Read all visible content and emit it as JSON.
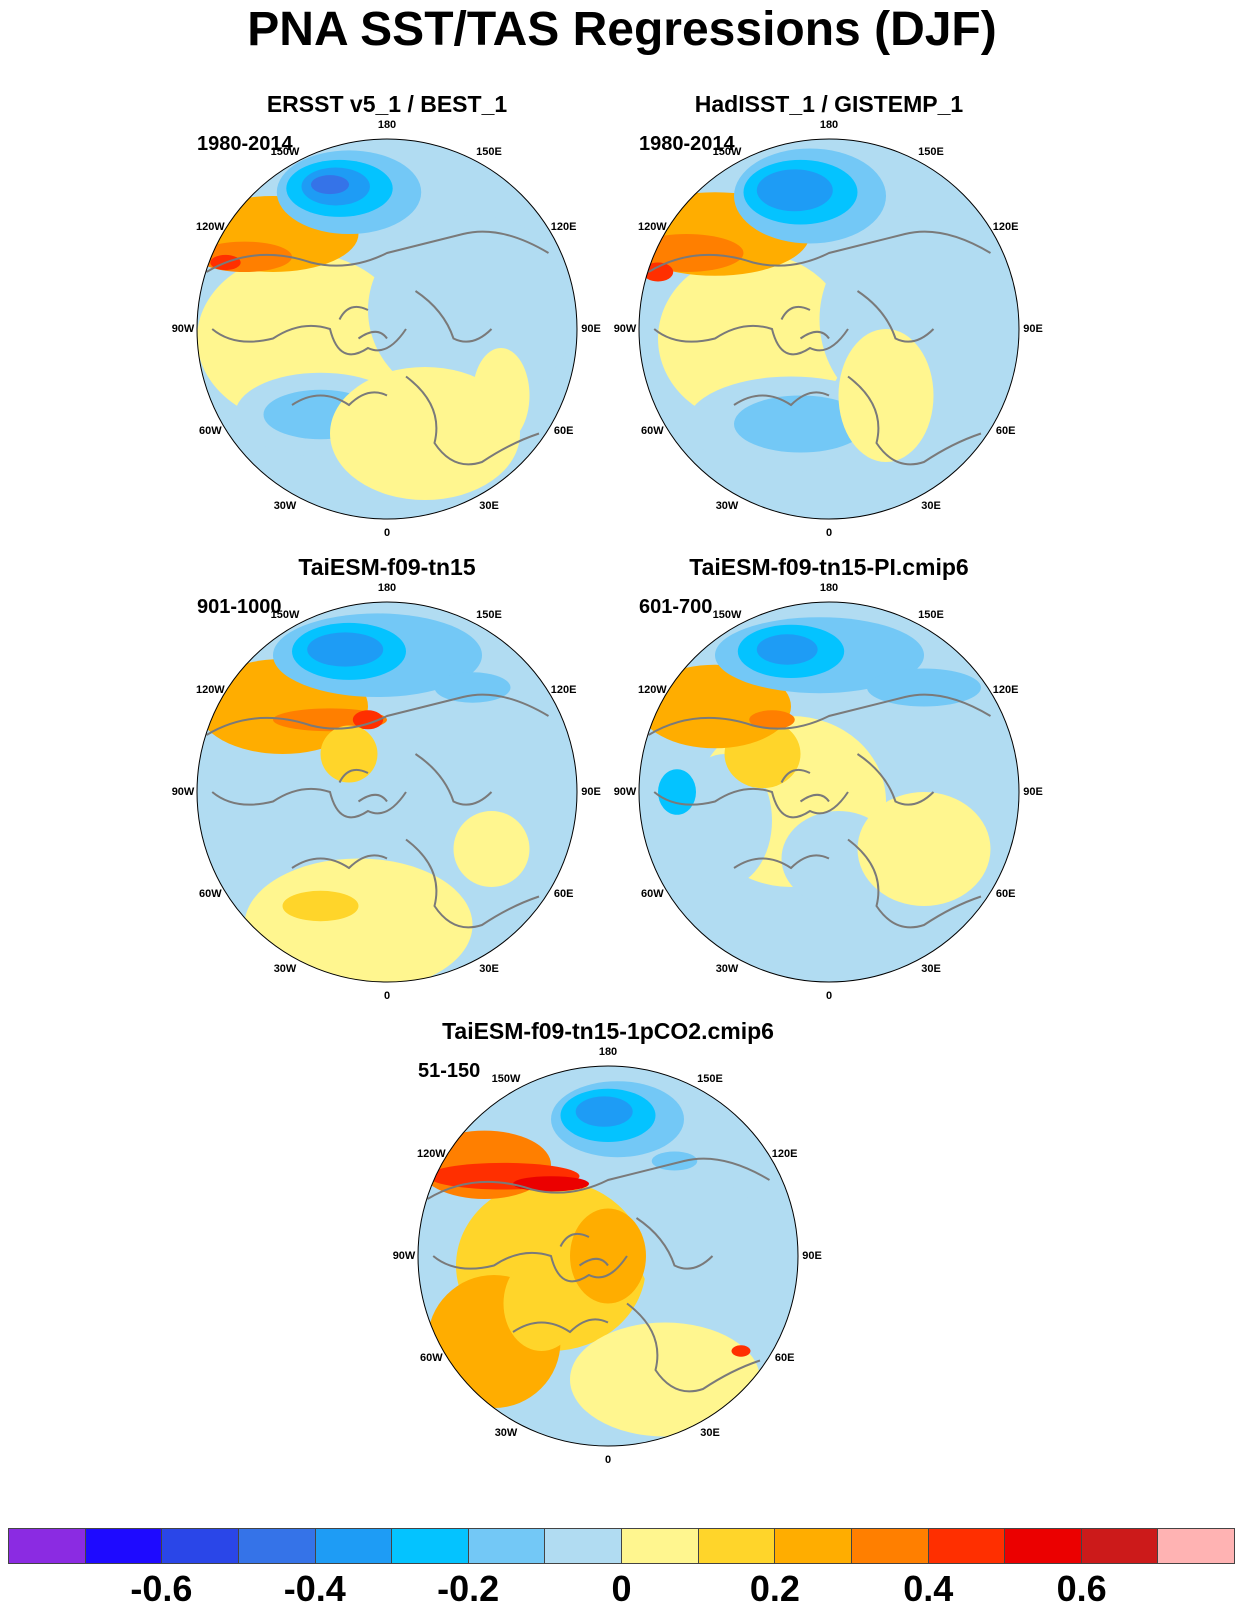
{
  "title": "PNA SST/TAS Regressions (DJF)",
  "colors": {
    "coast": "#7a7a7a",
    "palette": [
      "#8b2be2",
      "#1e0aff",
      "#2a46e8",
      "#3573e8",
      "#1e9cf5",
      "#04c3ff",
      "#73c8f6",
      "#b1dcf2",
      "#fff68f",
      "#ffd52a",
      "#ffad00",
      "#ff7f00",
      "#ff2f00",
      "#eb0000",
      "#cc1a1a",
      "#ffb3b3"
    ]
  },
  "longitude_labels": [
    "180",
    "150E",
    "120E",
    "90E",
    "60E",
    "30E",
    "0",
    "30W",
    "60W",
    "90W",
    "120W",
    "150W"
  ],
  "panels": [
    {
      "title": "ERSST v5_1 / BEST_1",
      "period": "1980-2014"
    },
    {
      "title": "HadISST_1 / GISTEMP_1",
      "period": "1980-2014"
    },
    {
      "title": "TaiESM-f09-tn15",
      "period": "901-1000"
    },
    {
      "title": "TaiESM-f09-tn15-PI.cmip6",
      "period": "601-700"
    },
    {
      "title": "TaiESM-f09-tn15-1pCO2.cmip6",
      "period": "51-150"
    }
  ],
  "colorbar": {
    "tick_labels": [
      "-0.6",
      "-0.4",
      "-0.2",
      "0",
      "0.2",
      "0.4",
      "0.6"
    ]
  }
}
